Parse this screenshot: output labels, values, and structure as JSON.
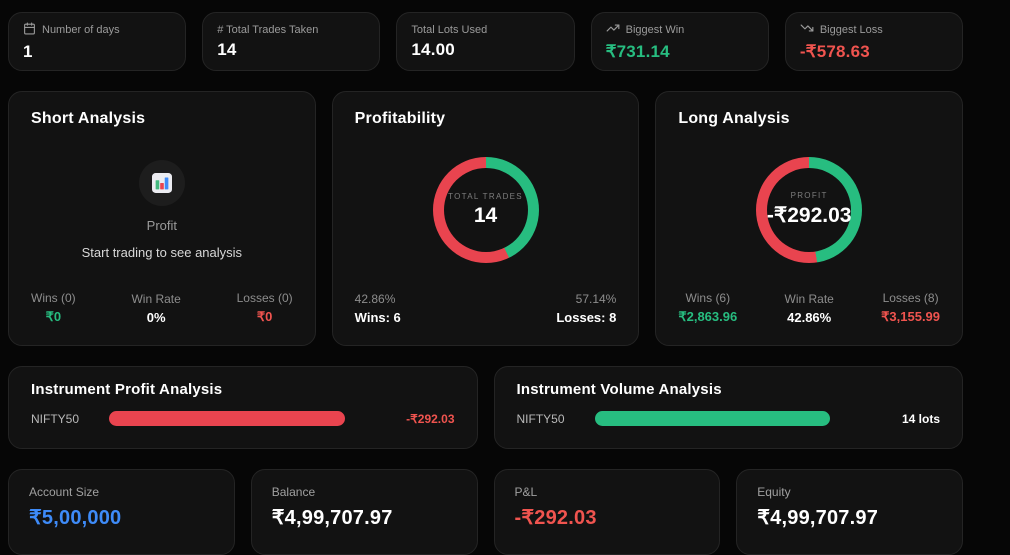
{
  "colors": {
    "green": "#27bd80",
    "red": "#e9444f",
    "red_text": "#f0544f",
    "blue": "#3e8bf8",
    "card_bg": "#121212",
    "page_bg": "#060606"
  },
  "stat_cards": [
    {
      "icon": "calendar-icon",
      "label": "Number of days",
      "value": "1",
      "tone": "white"
    },
    {
      "icon": null,
      "label": "# Total Trades Taken",
      "value": "14",
      "tone": "white"
    },
    {
      "icon": null,
      "label": "Total Lots Used",
      "value": "14.00",
      "tone": "white"
    },
    {
      "icon": "trending-up-icon",
      "label": "Biggest Win",
      "value": "₹731.14",
      "tone": "green"
    },
    {
      "icon": "trending-down-icon",
      "label": "Biggest Loss",
      "value": "-₹578.63",
      "tone": "red"
    }
  ],
  "short_analysis": {
    "title": "Short Analysis",
    "empty_icon": "bar-chart-icon",
    "empty_label": "Profit",
    "empty_message": "Start trading to see analysis",
    "footer": [
      {
        "label": "Wins (0)",
        "value": "₹0",
        "tone": "green"
      },
      {
        "label": "Win Rate",
        "value": "0%",
        "tone": "white"
      },
      {
        "label": "Losses (0)",
        "value": "₹0",
        "tone": "red"
      }
    ]
  },
  "profitability": {
    "title": "Profitability",
    "center_label": "TOTAL TRADES",
    "center_value": "14",
    "donut": {
      "win_pct": 42.86,
      "win_color": "#27bd80",
      "loss_color": "#e9444f"
    },
    "left_pct": "42.86%",
    "left_label": "Wins: 6",
    "right_pct": "57.14%",
    "right_label": "Losses: 8"
  },
  "long_analysis": {
    "title": "Long Analysis",
    "center_label": "PROFIT",
    "center_value": "-₹292.03",
    "donut": {
      "win_pct": 47.57,
      "win_color": "#27bd80",
      "loss_color": "#e9444f"
    },
    "footer": [
      {
        "label": "Wins (6)",
        "value": "₹2,863.96",
        "tone": "green"
      },
      {
        "label": "Win Rate",
        "value": "42.86%",
        "tone": "white"
      },
      {
        "label": "Losses (8)",
        "value": "₹3,155.99",
        "tone": "red"
      }
    ]
  },
  "instrument_profit": {
    "title": "Instrument Profit Analysis",
    "row": {
      "label": "NIFTY50",
      "value": "-₹292.03",
      "tone": "red",
      "bar": {
        "pct": 100,
        "color": "#e9444f"
      }
    }
  },
  "instrument_volume": {
    "title": "Instrument Volume Analysis",
    "row": {
      "label": "NIFTY50",
      "value": "14 lots",
      "tone": "white",
      "bar": {
        "pct": 100,
        "color": "#27bd80"
      }
    }
  },
  "account_cards": [
    {
      "label": "Account Size",
      "value": "₹5,00,000",
      "tone": "blue"
    },
    {
      "label": "Balance",
      "value": "₹4,99,707.97",
      "tone": "white"
    },
    {
      "label": "P&L",
      "value": "-₹292.03",
      "tone": "red"
    },
    {
      "label": "Equity",
      "value": "₹4,99,707.97",
      "tone": "white"
    }
  ],
  "chart_data": [
    {
      "type": "pie",
      "title": "Profitability",
      "labels": [
        "Wins",
        "Losses"
      ],
      "values": [
        42.86,
        57.14
      ],
      "counts": [
        6,
        8
      ],
      "total_trades": 14,
      "center_label": "TOTAL TRADES",
      "center_value": "14",
      "colors": [
        "#27bd80",
        "#e9444f"
      ],
      "legend_position": "bottom"
    },
    {
      "type": "pie",
      "title": "Long Analysis",
      "labels": [
        "Wins (6)",
        "Losses (8)"
      ],
      "values": [
        47.57,
        52.43
      ],
      "amounts": [
        2863.96,
        3155.99
      ],
      "win_rate": "42.86%",
      "center_label": "PROFIT",
      "center_value": "-₹292.03",
      "colors": [
        "#27bd80",
        "#e9444f"
      ],
      "legend_position": "bottom"
    },
    {
      "type": "bar",
      "title": "Instrument Profit Analysis",
      "categories": [
        "NIFTY50"
      ],
      "values": [
        -292.03
      ],
      "unit": "₹",
      "color": "#e9444f",
      "orientation": "horizontal"
    },
    {
      "type": "bar",
      "title": "Instrument Volume Analysis",
      "categories": [
        "NIFTY50"
      ],
      "values": [
        14
      ],
      "unit": "lots",
      "color": "#27bd80",
      "orientation": "horizontal"
    }
  ]
}
